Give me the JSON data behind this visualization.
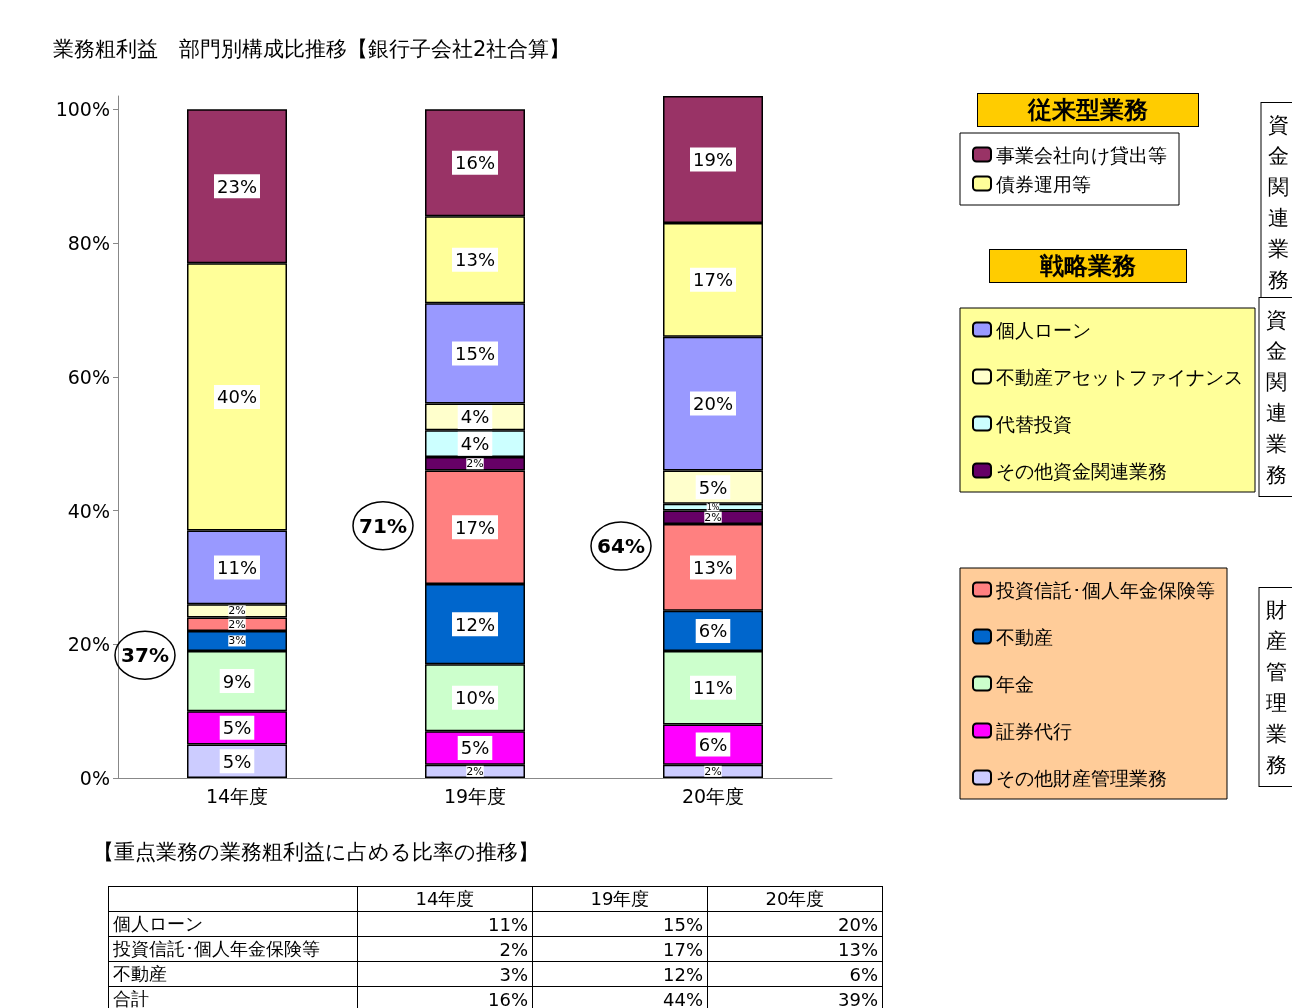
{
  "chart_data": [
    {
      "type": "bar",
      "title": "業務粗利益　部門別構成比推移【銀行子会社2社合算】",
      "categories": [
        "14年度",
        "19年度",
        "20年度"
      ],
      "stacked": true,
      "ylim": [
        0,
        102
      ],
      "yticks": [
        {
          "value": 0,
          "label": "0%"
        },
        {
          "value": 20,
          "label": "20%"
        },
        {
          "value": 40,
          "label": "40%"
        },
        {
          "value": 60,
          "label": "60%"
        },
        {
          "value": 80,
          "label": "80%"
        },
        {
          "value": 100,
          "label": "100%"
        }
      ],
      "grid": false,
      "legend": "right",
      "annotations": [
        "37%",
        "71%",
        "64%",
        "従来型業務",
        "資金関連業務",
        "戦略業務",
        "資金関連業務",
        "財産管理業務"
      ],
      "series": [
        {
          "name": "その他財産管理業務",
          "color": "#ccccff",
          "values": [
            5,
            2,
            2
          ],
          "value_labels": [
            "5%",
            "2%",
            "2%"
          ]
        },
        {
          "name": "証券代行",
          "color": "#ff00ff",
          "values": [
            5,
            5,
            6
          ],
          "value_labels": [
            "5%",
            "5%",
            "6%"
          ]
        },
        {
          "name": "年金",
          "color": "#ccffcc",
          "values": [
            9,
            10,
            11
          ],
          "value_labels": [
            "9%",
            "10%",
            "11%"
          ]
        },
        {
          "name": "不動産",
          "color": "#0066cc",
          "values": [
            3,
            12,
            6
          ],
          "value_labels": [
            "3%",
            "12%",
            "6%"
          ]
        },
        {
          "name": "投資信託･個人年金保険等",
          "color": "#ff8080",
          "values": [
            2,
            17,
            13
          ],
          "value_labels": [
            "2%",
            "17%",
            "13%"
          ]
        },
        {
          "name": "その他資金関連業務",
          "color": "#660066",
          "values": [
            null,
            2,
            2
          ],
          "value_labels": [
            null,
            "2%",
            "2%"
          ]
        },
        {
          "name": "代替投資",
          "color": "#ccffff",
          "values": [
            null,
            4,
            1
          ],
          "value_labels": [
            null,
            "4%",
            "1%"
          ]
        },
        {
          "name": "不動産アセットファイナンス",
          "color": "#ffffcc",
          "values": [
            2,
            4,
            5
          ],
          "value_labels": [
            "2%",
            "4%",
            "5%"
          ]
        },
        {
          "name": "個人ローン",
          "color": "#9999ff",
          "values": [
            11,
            15,
            20
          ],
          "value_labels": [
            "11%",
            "15%",
            "20%"
          ]
        },
        {
          "name": "債券運用等",
          "color": "#ffff99",
          "values": [
            40,
            13,
            17
          ],
          "value_labels": [
            "40%",
            "13%",
            "17%"
          ]
        },
        {
          "name": "事業会社向け貸出等",
          "color": "#993366",
          "values": [
            23,
            16,
            19
          ],
          "value_labels": [
            "23%",
            "16%",
            "19%"
          ]
        }
      ]
    },
    {
      "type": "heatmap",
      "title": "【重点業務の業務粗利益に占める比率の推移】",
      "categories": [
        "14年度",
        "19年度",
        "20年度"
      ],
      "y_categories": [
        "個人ローン",
        "投資信託･個人年金保険等",
        "不動産",
        "合計"
      ],
      "cells": [
        [
          11,
          15,
          20
        ],
        [
          2,
          17,
          13
        ],
        [
          3,
          12,
          6
        ],
        [
          16,
          44,
          39
        ]
      ],
      "cell_labels": [
        [
          "11%",
          "15%",
          "20%"
        ],
        [
          "2%",
          "17%",
          "13%"
        ],
        [
          "3%",
          "12%",
          "6%"
        ],
        [
          "16%",
          "44%",
          "39%"
        ]
      ]
    }
  ]
}
